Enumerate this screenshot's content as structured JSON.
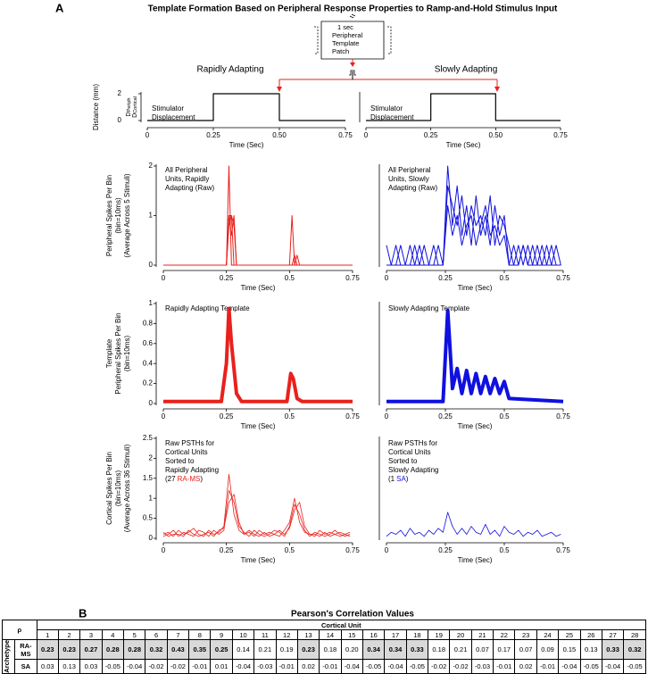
{
  "panel_a": {
    "label": "A",
    "title": "Template Formation Based on Peripheral Response Properties to Ramp-and-Hold Stimulus Input",
    "schematic": [
      "1 sec",
      "Peripheral",
      "Template",
      "Patch"
    ],
    "columns": [
      "Rapidly Adapting",
      "Slowly Adapting"
    ],
    "charts": [
      {
        "type": "line",
        "ylabel": [
          "Distance (mm)"
        ],
        "y_sublabels": [
          {
            "main": "D",
            "sub": "Periph"
          },
          {
            "main": "D",
            "sub": "Cortical"
          }
        ],
        "annotation": [
          "Stimulator",
          "Displacement"
        ],
        "xlabel": "Time (Sec)",
        "xlim": [
          0,
          0.75
        ],
        "xticks": [
          0,
          0.25,
          {
            "value": 0.5,
            "label": "0.50"
          },
          0.75
        ],
        "ylim": [
          0,
          2
        ],
        "yticks": [
          0,
          2
        ],
        "line_width": 1.2,
        "x": [
          0,
          0.25,
          0.25,
          0.5,
          0.5,
          0.75
        ],
        "series": [
          {
            "color": "#000000",
            "values": [
              0,
              0,
              2,
              2,
              0,
              0
            ]
          }
        ]
      },
      {
        "type": "line",
        "annotation": [
          "Stimulator",
          "Displacement"
        ],
        "xlabel": "Time (Sec)",
        "xlim": [
          0,
          0.75
        ],
        "xticks": [
          0,
          0.25,
          {
            "value": 0.5,
            "label": "0.50"
          },
          0.75
        ],
        "ylim": [
          0,
          2
        ],
        "line_width": 1.2,
        "x": [
          0,
          0.25,
          0.25,
          0.5,
          0.5,
          0.75
        ],
        "series": [
          {
            "color": "#000000",
            "values": [
              0,
              0,
              2,
              2,
              0,
              0
            ]
          }
        ]
      },
      {
        "type": "line",
        "ylabel": [
          "Peripheral Spikes Per Bin",
          "(bin=10ms)",
          "(Average Across 5 Stimuli)"
        ],
        "annotation": [
          "All Peripheral",
          "Units, Rapidly",
          "Adapting (Raw)"
        ],
        "xlabel": "Time (Sec)",
        "xlim": [
          0,
          0.75
        ],
        "xticks": [
          0,
          0.25,
          0.5,
          0.75
        ],
        "ylim": [
          0,
          2
        ],
        "yticks": [
          0,
          1,
          2
        ],
        "line_width": 1,
        "x": [
          0,
          0.24,
          0.25,
          0.26,
          0.27,
          0.28,
          0.29,
          0.3,
          0.49,
          0.5,
          0.51,
          0.52,
          0.53,
          0.54,
          0.75
        ],
        "series": [
          {
            "color": "#e8211c",
            "values": [
              0,
              0,
              0,
              2,
              0,
              0,
              0,
              0,
              0,
              0,
              1,
              0,
              0,
              0,
              0
            ]
          },
          {
            "color": "#e8211c",
            "values": [
              0,
              0,
              0,
              1,
              1,
              0,
              0,
              0,
              0,
              0,
              0,
              0.2,
              0,
              0,
              0
            ]
          },
          {
            "color": "#e8211c",
            "values": [
              0,
              0,
              0,
              0.8,
              1,
              0.8,
              0,
              0,
              0,
              0,
              0,
              0,
              0.2,
              0,
              0
            ]
          },
          {
            "color": "#e8211c",
            "values": [
              0,
              0,
              0,
              1,
              0.6,
              1,
              0,
              0,
              0,
              0,
              0,
              0,
              0,
              0,
              0
            ]
          }
        ]
      },
      {
        "type": "line",
        "annotation": [
          "All Peripheral",
          "Units, Slowly",
          "Adapting (Raw)"
        ],
        "xlabel": "Time (Sec)",
        "xlim": [
          0,
          0.75
        ],
        "xticks": [
          0,
          0.25,
          0.5,
          0.75
        ],
        "ylim": [
          0,
          2
        ],
        "line_width": 1,
        "x": [
          0,
          0.02,
          0.04,
          0.06,
          0.08,
          0.1,
          0.12,
          0.14,
          0.16,
          0.18,
          0.2,
          0.22,
          0.24,
          0.26,
          0.28,
          0.3,
          0.32,
          0.34,
          0.36,
          0.38,
          0.4,
          0.42,
          0.44,
          0.46,
          0.48,
          0.5,
          0.52,
          0.54,
          0.56,
          0.58,
          0.6,
          0.62,
          0.64,
          0.66,
          0.68,
          0.7,
          0.72,
          0.74
        ],
        "series": [
          {
            "color": "#1010e0",
            "values": [
              0,
              0,
              0,
              0.4,
              0,
              0,
              0.4,
              0,
              0,
              0,
              0.4,
              0,
              0,
              2,
              0.8,
              1.6,
              0.6,
              1.2,
              0.4,
              1.4,
              0.6,
              1,
              0.4,
              1.2,
              0.6,
              1,
              0,
              0.4,
              0,
              0.4,
              0,
              0,
              0.4,
              0,
              0.4,
              0,
              0,
              0
            ]
          },
          {
            "color": "#1010e0",
            "values": [
              0.4,
              0,
              0,
              0,
              0,
              0.4,
              0,
              0,
              0.4,
              0,
              0,
              0.4,
              0,
              1.6,
              1.2,
              0.8,
              1.4,
              0.6,
              1.2,
              0.8,
              1,
              0.6,
              1.4,
              0.4,
              1,
              0.8,
              0.4,
              0,
              0.4,
              0,
              0.4,
              0,
              0,
              0.4,
              0,
              0,
              0.4,
              0
            ]
          },
          {
            "color": "#1010e0",
            "values": [
              0,
              0,
              0.4,
              0,
              0,
              0,
              0,
              0.4,
              0,
              0,
              0,
              0,
              0,
              1.2,
              0.6,
              1,
              0.4,
              0.8,
              1,
              0.4,
              0.8,
              1.2,
              0.6,
              0.8,
              0.4,
              0.6,
              0,
              0,
              0,
              0.4,
              0,
              0.4,
              0,
              0,
              0,
              0.4,
              0,
              0
            ]
          }
        ]
      },
      {
        "type": "line",
        "ylabel": [
          "Template",
          "Peripheral Spikes Per Bin",
          "(bin=10ms)"
        ],
        "annotation": [
          "Rapidly Adapting Template"
        ],
        "xlabel": "Time (Sec)",
        "xlim": [
          0,
          0.75
        ],
        "xticks": [
          0,
          0.25,
          0.5,
          0.75
        ],
        "ylim": [
          0,
          1
        ],
        "yticks": [
          0,
          0.2,
          0.4,
          0.6,
          0.8,
          1
        ],
        "line_width": 4,
        "x": [
          0,
          0.23,
          0.25,
          0.26,
          0.27,
          0.29,
          0.31,
          0.49,
          0.505,
          0.515,
          0.53,
          0.55,
          0.75
        ],
        "series": [
          {
            "color": "#e8211c",
            "values": [
              0.02,
              0.02,
              0.4,
              0.95,
              0.6,
              0.1,
              0.02,
              0.02,
              0.3,
              0.25,
              0.05,
              0.02,
              0.02
            ]
          }
        ]
      },
      {
        "type": "line",
        "annotation": [
          "Slowly Adapting Template"
        ],
        "xlabel": "Time (Sec)",
        "xlim": [
          0,
          0.75
        ],
        "xticks": [
          0,
          0.25,
          0.5,
          0.75
        ],
        "ylim": [
          0,
          1
        ],
        "line_width": 4,
        "x": [
          0,
          0.24,
          0.26,
          0.28,
          0.3,
          0.32,
          0.34,
          0.36,
          0.38,
          0.4,
          0.42,
          0.44,
          0.46,
          0.48,
          0.5,
          0.52,
          0.75
        ],
        "series": [
          {
            "color": "#1010e0",
            "values": [
              0.02,
              0.02,
              0.93,
              0.15,
              0.35,
              0.1,
              0.33,
              0.1,
              0.3,
              0.1,
              0.27,
              0.1,
              0.25,
              0.1,
              0.22,
              0.05,
              0.02
            ]
          }
        ]
      },
      {
        "type": "line",
        "ylabel": [
          "Cortical Spikes Per Bin",
          "(bin=10ms)",
          "(Average Across 36 Stimuli)"
        ],
        "annotation": [
          "Raw PSTHs for",
          "Cortical Units",
          "Sorted to",
          "Rapidly Adapting"
        ],
        "note": {
          "prefix": "(27",
          "name": "RA-MS",
          "suffix": ")",
          "name_color": "#e8211c"
        },
        "xlabel": "Time (Sec)",
        "xlim": [
          0,
          0.75
        ],
        "xticks": [
          0,
          0.25,
          0.5,
          0.75
        ],
        "ylim": [
          0,
          2.5
        ],
        "yticks": [
          0,
          0.5,
          1,
          1.5,
          2,
          2.5
        ],
        "line_width": 0.8,
        "x": [
          0,
          0.02,
          0.04,
          0.06,
          0.08,
          0.1,
          0.12,
          0.14,
          0.16,
          0.18,
          0.2,
          0.22,
          0.24,
          0.26,
          0.28,
          0.3,
          0.32,
          0.34,
          0.36,
          0.38,
          0.4,
          0.42,
          0.44,
          0.46,
          0.48,
          0.5,
          0.52,
          0.54,
          0.56,
          0.58,
          0.6,
          0.62,
          0.64,
          0.66,
          0.68,
          0.7,
          0.72,
          0.74
        ],
        "series": [
          {
            "color": "#e8211c",
            "values": [
              0.1,
              0.15,
              0.05,
              0.2,
              0.1,
              0.15,
              0.25,
              0.1,
              0.05,
              0.2,
              0.1,
              0.15,
              0.3,
              1.6,
              0.6,
              0.2,
              0.1,
              0.15,
              0.05,
              0.2,
              0.1,
              0.15,
              0.1,
              0.05,
              0.2,
              0.4,
              1,
              0.4,
              0.15,
              0.1,
              0.05,
              0.2,
              0.1,
              0.15,
              0.1,
              0.05,
              0.1,
              0.15
            ]
          },
          {
            "color": "#e8211c",
            "values": [
              0.05,
              0.1,
              0.2,
              0.05,
              0.15,
              0.1,
              0.05,
              0.2,
              0.15,
              0.05,
              0.2,
              0.1,
              0.2,
              1.2,
              0.9,
              0.3,
              0.15,
              0.05,
              0.2,
              0.1,
              0.05,
              0.1,
              0.2,
              0.15,
              0.05,
              0.3,
              0.85,
              0.6,
              0.2,
              0.05,
              0.15,
              0.1,
              0.05,
              0.1,
              0.2,
              0.1,
              0.05,
              0.1
            ]
          },
          {
            "color": "#e8211c",
            "values": [
              0.15,
              0.05,
              0.1,
              0.1,
              0.05,
              0.2,
              0.1,
              0.05,
              0.1,
              0.15,
              0.05,
              0.2,
              0.25,
              0.9,
              1.1,
              0.4,
              0.1,
              0.2,
              0.1,
              0.05,
              0.15,
              0.05,
              0.1,
              0.2,
              0.1,
              0.25,
              0.7,
              0.9,
              0.3,
              0.1,
              0.1,
              0.05,
              0.15,
              0.05,
              0.1,
              0.15,
              0.1,
              0.05
            ]
          }
        ]
      },
      {
        "type": "line",
        "annotation": [
          "Raw PSTHs for",
          "Cortical Units",
          "Sorted to",
          "Slowly Adapting"
        ],
        "note": {
          "prefix": "(1",
          "name": "SA",
          "suffix": ")",
          "name_color": "#1010e0"
        },
        "xlabel": "Time (Sec)",
        "xlim": [
          0,
          0.75
        ],
        "xticks": [
          0,
          0.25,
          0.5,
          0.75
        ],
        "ylim": [
          0,
          2.5
        ],
        "line_width": 0.8,
        "x": [
          0,
          0.02,
          0.04,
          0.06,
          0.08,
          0.1,
          0.12,
          0.14,
          0.16,
          0.18,
          0.2,
          0.22,
          0.24,
          0.26,
          0.28,
          0.3,
          0.32,
          0.34,
          0.36,
          0.38,
          0.4,
          0.42,
          0.44,
          0.46,
          0.48,
          0.5,
          0.52,
          0.54,
          0.56,
          0.58,
          0.6,
          0.62,
          0.64,
          0.66,
          0.68,
          0.7,
          0.72,
          0.74
        ],
        "series": [
          {
            "color": "#1010e0",
            "values": [
              0.05,
              0.15,
              0.1,
              0.2,
              0.05,
              0.25,
              0.1,
              0.15,
              0.05,
              0.2,
              0.1,
              0.25,
              0.15,
              0.65,
              0.3,
              0.1,
              0.25,
              0.1,
              0.3,
              0.15,
              0.1,
              0.35,
              0.1,
              0.2,
              0.05,
              0.3,
              0.15,
              0.1,
              0.2,
              0.05,
              0.15,
              0.1,
              0.2,
              0.05,
              0.1,
              0.15,
              0.05,
              0.1
            ]
          }
        ]
      }
    ]
  },
  "panel_b": {
    "label": "B",
    "title": "Pearson's Correlation Values",
    "table": {
      "rho": "ρ",
      "header": "Cortical Unit",
      "row_group": "Archetype",
      "columns": [
        1,
        2,
        3,
        4,
        5,
        6,
        7,
        8,
        9,
        10,
        11,
        12,
        13,
        14,
        15,
        16,
        17,
        18,
        19,
        20,
        21,
        22,
        23,
        24,
        25,
        26,
        27,
        28
      ],
      "rows": [
        {
          "label": "RA-MS",
          "values": [
            "0.23",
            "0.23",
            "0.27",
            "0.28",
            "0.28",
            "0.32",
            "0.43",
            "0.35",
            "0.25",
            "0.14",
            "0.21",
            "0.19",
            "0.23",
            "0.18",
            "0.20",
            "0.34",
            "0.34",
            "0.33",
            "0.18",
            "0.21",
            "0.07",
            "0.17",
            "0.07",
            "0.09",
            "0.15",
            "0.13",
            "0.33",
            "0.32"
          ],
          "highlight": [
            true,
            true,
            true,
            true,
            true,
            true,
            true,
            true,
            true,
            false,
            false,
            false,
            true,
            false,
            false,
            true,
            true,
            true,
            false,
            false,
            false,
            false,
            false,
            false,
            false,
            false,
            true,
            true
          ]
        },
        {
          "label": "SA",
          "values": [
            "0.03",
            "0.13",
            "0.03",
            "-0.05",
            "-0.04",
            "-0.02",
            "-0.02",
            "-0.01",
            "0.01",
            "-0.04",
            "-0.03",
            "-0.01",
            "0.02",
            "-0.01",
            "-0.04",
            "-0.05",
            "-0.04",
            "-0.05",
            "-0.02",
            "-0.02",
            "-0.03",
            "-0.01",
            "0.02",
            "-0.01",
            "-0.04",
            "-0.05",
            "-0.04",
            "-0.05"
          ]
        }
      ]
    }
  }
}
